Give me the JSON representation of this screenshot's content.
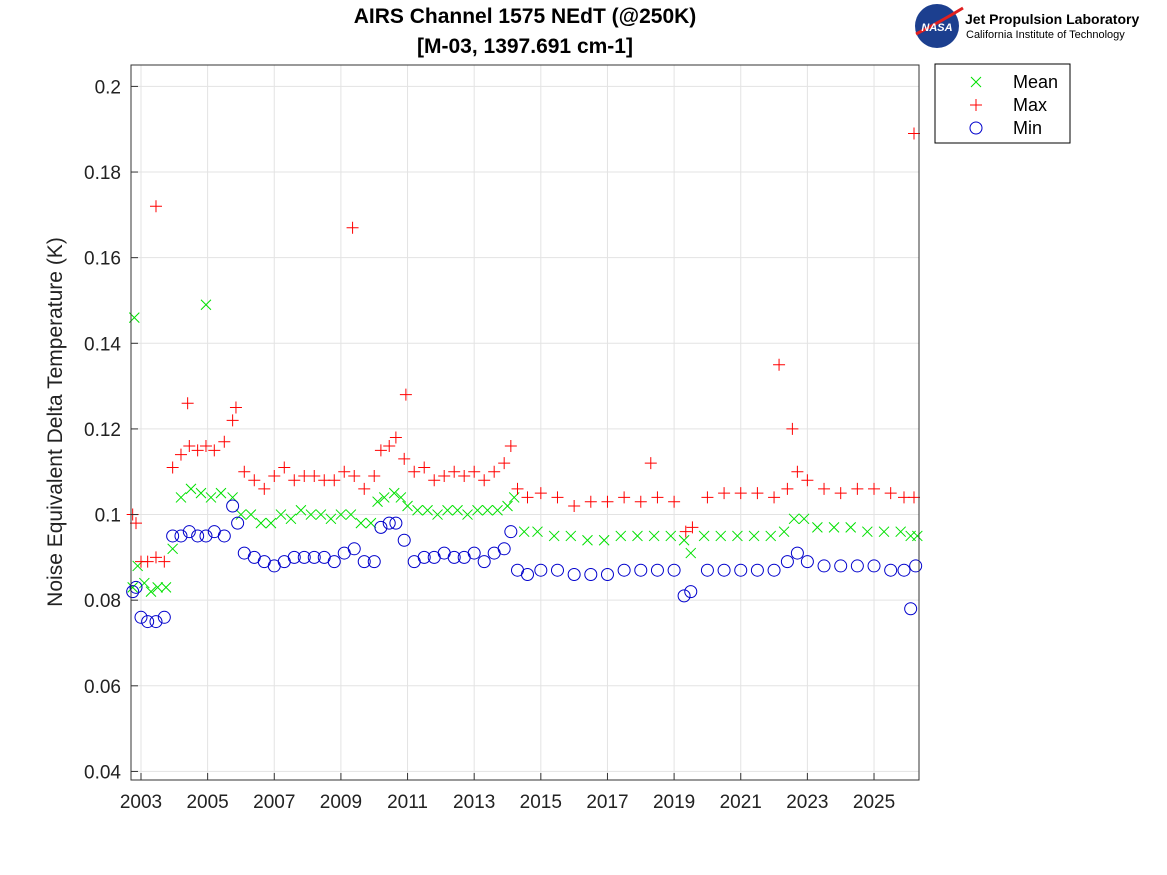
{
  "chart_data": {
    "type": "scatter",
    "title": "AIRS Channel 1575 NEdT (@250K)",
    "subtitle": "[M-03, 1397.691 cm-1]",
    "ylabel": "Noise Equivalent Delta Temperature (K)",
    "xlabel": "",
    "xlim": [
      2002.7,
      2026.35
    ],
    "ylim": [
      0.038,
      0.205
    ],
    "x_ticks": [
      2003,
      2005,
      2007,
      2009,
      2011,
      2013,
      2015,
      2017,
      2019,
      2021,
      2023,
      2025
    ],
    "x_tick_labels": [
      "2003",
      "2005",
      "2007",
      "2009",
      "2011",
      "2013",
      "2015",
      "2017",
      "2019",
      "2021",
      "2023",
      "2025"
    ],
    "y_ticks": [
      0.04,
      0.06,
      0.08,
      0.1,
      0.12,
      0.14,
      0.16,
      0.18,
      0.2
    ],
    "y_tick_labels": [
      "0.04",
      "0.06",
      "0.08",
      "0.1",
      "0.12",
      "0.14",
      "0.16",
      "0.18",
      "0.2"
    ],
    "grid": true,
    "legend_position": "outside-top-right",
    "series": [
      {
        "name": "Mean",
        "marker": "x",
        "color": "#00e000",
        "x": [
          2002.75,
          2002.9,
          2003.1,
          2003.3,
          2003.5,
          2003.75,
          2003.95,
          2004.2,
          2004.5,
          2004.8,
          2005.1,
          2005.4,
          2005.75,
          2006.0,
          2006.3,
          2006.6,
          2006.9,
          2007.2,
          2007.5,
          2007.8,
          2008.1,
          2008.4,
          2008.7,
          2009.0,
          2009.3,
          2009.6,
          2009.9,
          2010.1,
          2010.3,
          2010.6,
          2010.8,
          2011.0,
          2011.3,
          2011.6,
          2011.9,
          2012.2,
          2012.5,
          2012.8,
          2013.1,
          2013.4,
          2013.7,
          2014.0,
          2014.2,
          2014.5,
          2014.9,
          2015.4,
          2015.9,
          2016.4,
          2016.9,
          2017.4,
          2017.9,
          2018.4,
          2018.9,
          2019.3,
          2019.5,
          2019.9,
          2020.4,
          2020.9,
          2021.4,
          2021.9,
          2022.3,
          2022.6,
          2022.9,
          2023.3,
          2023.8,
          2024.3,
          2024.8,
          2025.3,
          2025.8,
          2026.1,
          2026.3,
          2002.8,
          2004.95
        ],
        "y": [
          0.083,
          0.088,
          0.084,
          0.082,
          0.083,
          0.083,
          0.092,
          0.104,
          0.106,
          0.105,
          0.104,
          0.105,
          0.104,
          0.1,
          0.1,
          0.098,
          0.098,
          0.1,
          0.099,
          0.101,
          0.1,
          0.1,
          0.099,
          0.1,
          0.1,
          0.098,
          0.098,
          0.103,
          0.104,
          0.105,
          0.104,
          0.102,
          0.101,
          0.101,
          0.1,
          0.101,
          0.101,
          0.1,
          0.101,
          0.101,
          0.101,
          0.102,
          0.104,
          0.096,
          0.096,
          0.095,
          0.095,
          0.094,
          0.094,
          0.095,
          0.095,
          0.095,
          0.095,
          0.094,
          0.091,
          0.095,
          0.095,
          0.095,
          0.095,
          0.095,
          0.096,
          0.099,
          0.099,
          0.097,
          0.097,
          0.097,
          0.096,
          0.096,
          0.096,
          0.095,
          0.095,
          0.146,
          0.149
        ]
      },
      {
        "name": "Max",
        "marker": "+",
        "color": "#ff0000",
        "x": [
          2002.75,
          2002.85,
          2003.0,
          2003.2,
          2003.45,
          2003.7,
          2003.95,
          2004.2,
          2004.45,
          2004.7,
          2004.95,
          2005.2,
          2005.5,
          2005.75,
          2005.85,
          2006.1,
          2006.4,
          2006.7,
          2007.0,
          2007.3,
          2007.6,
          2007.9,
          2008.2,
          2008.5,
          2008.8,
          2009.1,
          2009.4,
          2009.7,
          2010.0,
          2010.2,
          2010.45,
          2010.65,
          2010.9,
          2011.2,
          2011.5,
          2011.8,
          2012.1,
          2012.4,
          2012.7,
          2013.0,
          2013.3,
          2013.6,
          2013.9,
          2014.1,
          2014.3,
          2014.6,
          2015.0,
          2015.5,
          2016.0,
          2016.5,
          2017.0,
          2017.5,
          2018.0,
          2018.5,
          2019.0,
          2019.35,
          2019.55,
          2020.0,
          2020.5,
          2021.0,
          2021.5,
          2022.0,
          2022.4,
          2022.7,
          2023.0,
          2023.5,
          2024.0,
          2024.5,
          2025.0,
          2025.5,
          2025.9,
          2026.2,
          2003.45,
          2009.35,
          2022.15,
          2026.2,
          2018.3,
          2004.4,
          2010.95,
          2022.55
        ],
        "y": [
          0.1,
          0.098,
          0.089,
          0.089,
          0.09,
          0.089,
          0.111,
          0.114,
          0.116,
          0.115,
          0.116,
          0.115,
          0.117,
          0.122,
          0.125,
          0.11,
          0.108,
          0.106,
          0.109,
          0.111,
          0.108,
          0.109,
          0.109,
          0.108,
          0.108,
          0.11,
          0.109,
          0.106,
          0.109,
          0.115,
          0.116,
          0.118,
          0.113,
          0.11,
          0.111,
          0.108,
          0.109,
          0.11,
          0.109,
          0.11,
          0.108,
          0.11,
          0.112,
          0.116,
          0.106,
          0.104,
          0.105,
          0.104,
          0.102,
          0.103,
          0.103,
          0.104,
          0.103,
          0.104,
          0.103,
          0.096,
          0.097,
          0.104,
          0.105,
          0.105,
          0.105,
          0.104,
          0.106,
          0.11,
          0.108,
          0.106,
          0.105,
          0.106,
          0.106,
          0.105,
          0.104,
          0.104,
          0.172,
          0.167,
          0.135,
          0.189,
          0.112,
          0.126,
          0.128,
          0.12
        ]
      },
      {
        "name": "Min",
        "marker": "o",
        "color": "#0000cc",
        "x": [
          2002.75,
          2002.85,
          2003.0,
          2003.2,
          2003.45,
          2003.7,
          2003.95,
          2004.2,
          2004.45,
          2004.7,
          2004.95,
          2005.2,
          2005.5,
          2005.75,
          2005.9,
          2006.1,
          2006.4,
          2006.7,
          2007.0,
          2007.3,
          2007.6,
          2007.9,
          2008.2,
          2008.5,
          2008.8,
          2009.1,
          2009.4,
          2009.7,
          2010.0,
          2010.2,
          2010.45,
          2010.65,
          2010.9,
          2011.2,
          2011.5,
          2011.8,
          2012.1,
          2012.4,
          2012.7,
          2013.0,
          2013.3,
          2013.6,
          2013.9,
          2014.1,
          2014.3,
          2014.6,
          2015.0,
          2015.5,
          2016.0,
          2016.5,
          2017.0,
          2017.5,
          2018.0,
          2018.5,
          2019.0,
          2019.3,
          2019.5,
          2020.0,
          2020.5,
          2021.0,
          2021.5,
          2022.0,
          2022.4,
          2022.7,
          2023.0,
          2023.5,
          2024.0,
          2024.5,
          2025.0,
          2025.5,
          2025.9,
          2026.1,
          2026.25
        ],
        "y": [
          0.082,
          0.083,
          0.076,
          0.075,
          0.075,
          0.076,
          0.095,
          0.095,
          0.096,
          0.095,
          0.095,
          0.096,
          0.095,
          0.102,
          0.098,
          0.091,
          0.09,
          0.089,
          0.088,
          0.089,
          0.09,
          0.09,
          0.09,
          0.09,
          0.089,
          0.091,
          0.092,
          0.089,
          0.089,
          0.097,
          0.098,
          0.098,
          0.094,
          0.089,
          0.09,
          0.09,
          0.091,
          0.09,
          0.09,
          0.091,
          0.089,
          0.091,
          0.092,
          0.096,
          0.087,
          0.086,
          0.087,
          0.087,
          0.086,
          0.086,
          0.086,
          0.087,
          0.087,
          0.087,
          0.087,
          0.081,
          0.082,
          0.087,
          0.087,
          0.087,
          0.087,
          0.087,
          0.089,
          0.091,
          0.089,
          0.088,
          0.088,
          0.088,
          0.088,
          0.087,
          0.087,
          0.078,
          0.088
        ]
      }
    ]
  },
  "legend": {
    "entries": [
      {
        "label": "Mean",
        "symbol": "×",
        "color": "#00e000"
      },
      {
        "label": "Max",
        "symbol": "+",
        "color": "#ff0000"
      },
      {
        "label": "Min",
        "symbol": "○",
        "color": "#0000cc"
      }
    ]
  },
  "logo": {
    "nasa_text": "NASA",
    "org_name": "Jet Propulsion Laboratory",
    "org_sub": "California Institute of Technology"
  }
}
